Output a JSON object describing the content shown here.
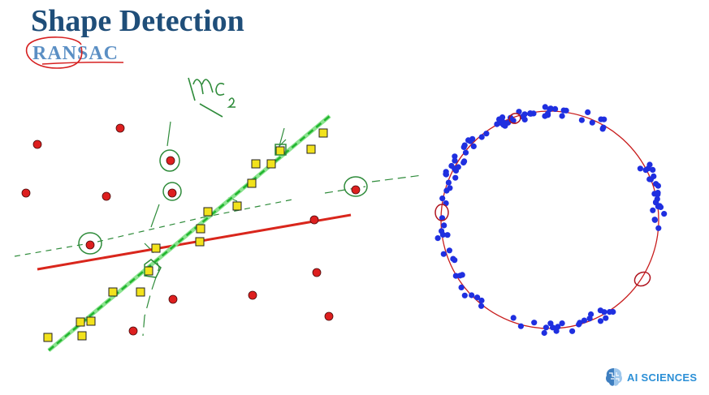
{
  "title": "Shape Detection",
  "subtitle": "RANSAC",
  "annotation": "nC2",
  "logo": {
    "text": "AI SCIENCES",
    "icon": "brain-logo-icon"
  },
  "colors": {
    "title": "#1f4e79",
    "subtitle": "#5b8fc4",
    "red_point": "#dd1f1f",
    "yellow_square": "#f2e21c",
    "fit_line": "#d9261c",
    "ransac_line": "#3fd24a",
    "annotation_ink": "#2e8b3a",
    "circle_points": "#1f2fe0",
    "circle_fit": "#c81e1e"
  }
}
